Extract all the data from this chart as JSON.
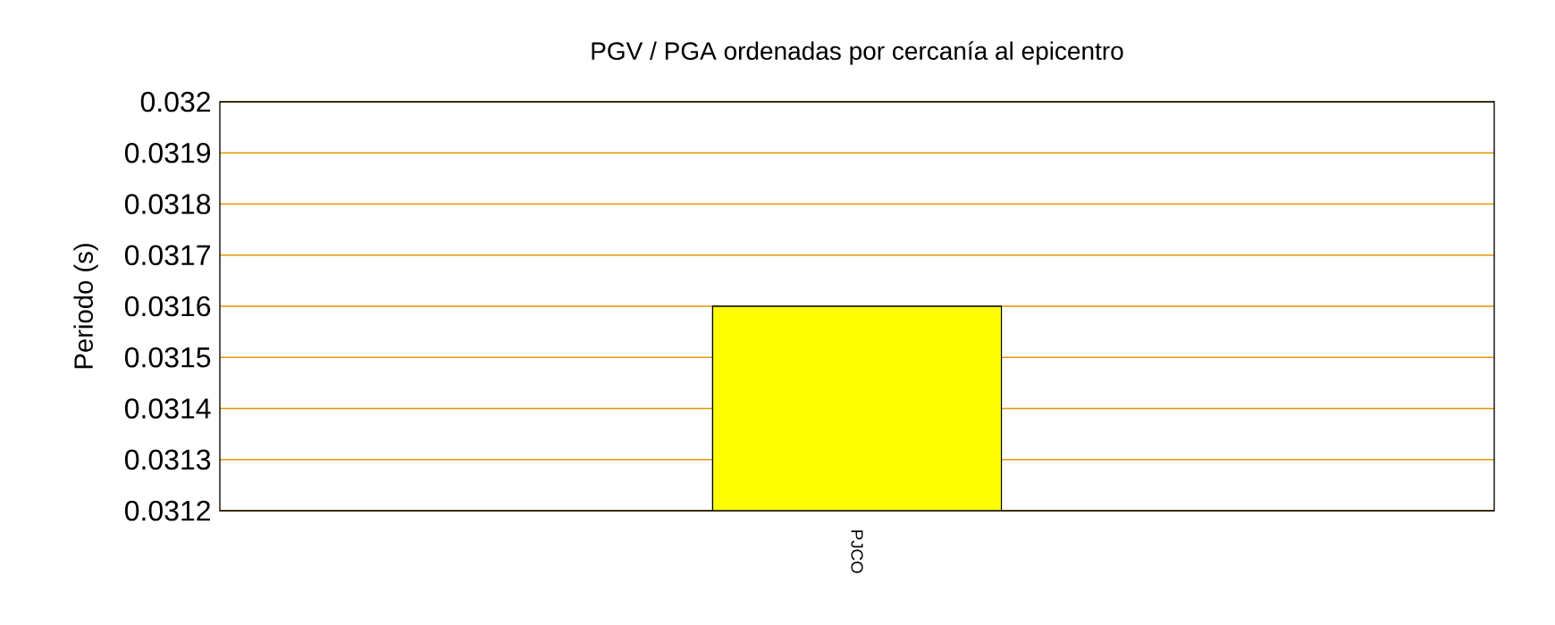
{
  "chart_data": {
    "type": "bar",
    "title": "PGV / PGA ordenadas por cercanía al epicentro",
    "ylabel": "Periodo (s)",
    "categories": [
      "PJCO"
    ],
    "values": [
      0.0316
    ],
    "color": "#ffff00",
    "ylim": [
      0.0312,
      0.032
    ],
    "yticks": [
      0.0312,
      0.0313,
      0.0314,
      0.0315,
      0.0316,
      0.0317,
      0.0318,
      0.0319,
      0.032
    ],
    "grid": "y"
  }
}
